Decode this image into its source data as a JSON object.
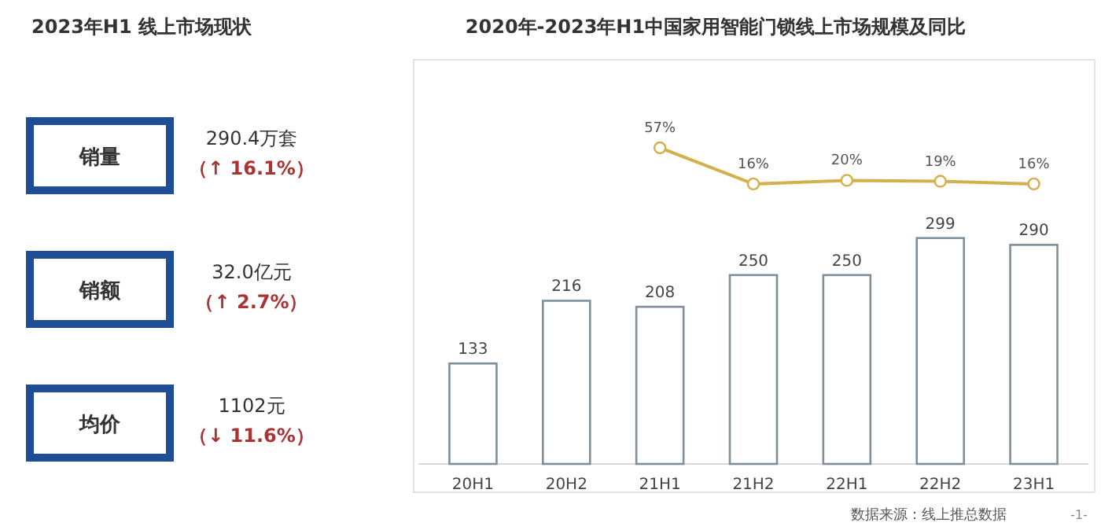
{
  "chart_data": [
    {
      "type": "other",
      "title": "2023年H1 线上市场现状",
      "categories": [
        "销量",
        "销额",
        "均价"
      ],
      "annotations": [
        "290.4万套",
        "（↑ 16.1%）",
        "32.0亿元",
        "（↑ 2.7%）",
        "1102元",
        "（↓ 11.6%）"
      ]
    },
    {
      "type": "bar",
      "title": "2020年-2023年H1中国家用智能门锁线上市场规模及同比",
      "categories": [
        "20H1",
        "20H2",
        "21H1",
        "21H2",
        "22H1",
        "22H2",
        "23H1"
      ],
      "ylim": [
        0,
        535
      ],
      "y2lim": [
        -302,
        157
      ],
      "data_labels": true,
      "marker": "circle",
      "series": [
        {
          "type": "bar",
          "color": "#7f8f99",
          "values": [
            133,
            216,
            208,
            250,
            250,
            299,
            290
          ]
        },
        {
          "type": "line",
          "axis": "y2",
          "color": "#d4b04a",
          "values": [
            null,
            null,
            57,
            16,
            20,
            19,
            16
          ],
          "value_labels": [
            null,
            null,
            "57%",
            "16%",
            "20%",
            "19%",
            "16%"
          ]
        }
      ],
      "annotations": [
        "数据来源：线上推总数据",
        "-1-"
      ]
    }
  ]
}
